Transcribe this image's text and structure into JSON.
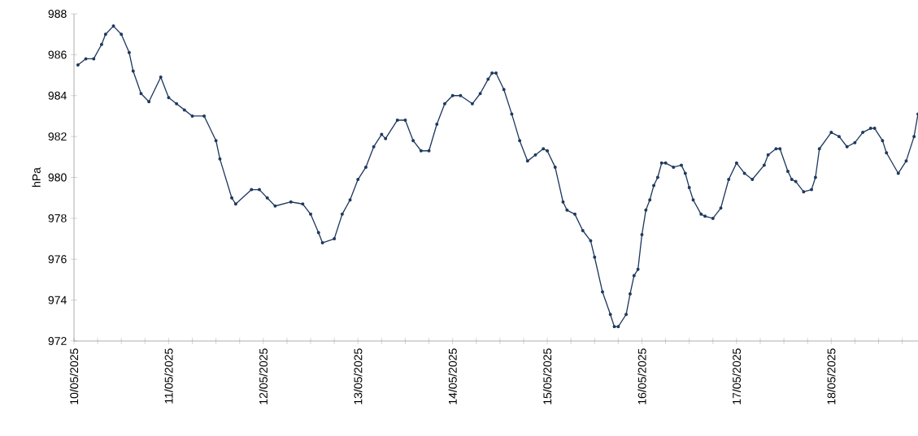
{
  "chart_data": {
    "type": "line",
    "ylabel": "hPa",
    "marker": "circle",
    "line_style": "solid",
    "xlim": [
      "2025-05-10T00:00",
      "2025-05-18T22:00"
    ],
    "ylim": [
      972,
      988
    ],
    "yticks": [
      972,
      974,
      976,
      978,
      980,
      982,
      984,
      986,
      988
    ],
    "xticks": [
      {
        "value": "2025-05-10T00:00",
        "label": "10/05/2025"
      },
      {
        "value": "2025-05-10T06:00",
        "label": null
      },
      {
        "value": "2025-05-10T12:00",
        "label": null
      },
      {
        "value": "2025-05-10T18:00",
        "label": null
      },
      {
        "value": "2025-05-11T00:00",
        "label": "11/05/2025"
      },
      {
        "value": "2025-05-11T06:00",
        "label": null
      },
      {
        "value": "2025-05-11T12:00",
        "label": null
      },
      {
        "value": "2025-05-11T18:00",
        "label": null
      },
      {
        "value": "2025-05-12T00:00",
        "label": "12/05/2025"
      },
      {
        "value": "2025-05-12T06:00",
        "label": null
      },
      {
        "value": "2025-05-12T12:00",
        "label": null
      },
      {
        "value": "2025-05-12T18:00",
        "label": null
      },
      {
        "value": "2025-05-13T00:00",
        "label": "13/05/2025"
      },
      {
        "value": "2025-05-13T06:00",
        "label": null
      },
      {
        "value": "2025-05-13T12:00",
        "label": null
      },
      {
        "value": "2025-05-13T18:00",
        "label": null
      },
      {
        "value": "2025-05-14T00:00",
        "label": "14/05/2025"
      },
      {
        "value": "2025-05-14T06:00",
        "label": null
      },
      {
        "value": "2025-05-14T12:00",
        "label": null
      },
      {
        "value": "2025-05-14T18:00",
        "label": null
      },
      {
        "value": "2025-05-15T00:00",
        "label": "15/05/2025"
      },
      {
        "value": "2025-05-15T06:00",
        "label": null
      },
      {
        "value": "2025-05-15T12:00",
        "label": null
      },
      {
        "value": "2025-05-15T18:00",
        "label": null
      },
      {
        "value": "2025-05-16T00:00",
        "label": "16/05/2025"
      },
      {
        "value": "2025-05-16T06:00",
        "label": null
      },
      {
        "value": "2025-05-16T12:00",
        "label": null
      },
      {
        "value": "2025-05-16T18:00",
        "label": null
      },
      {
        "value": "2025-05-17T00:00",
        "label": "17/05/2025"
      },
      {
        "value": "2025-05-17T06:00",
        "label": null
      },
      {
        "value": "2025-05-17T12:00",
        "label": null
      },
      {
        "value": "2025-05-17T18:00",
        "label": null
      },
      {
        "value": "2025-05-18T00:00",
        "label": "18/05/2025"
      },
      {
        "value": "2025-05-18T06:00",
        "label": null
      },
      {
        "value": "2025-05-18T12:00",
        "label": null
      },
      {
        "value": "2025-05-18T18:00",
        "label": null
      }
    ],
    "series": [
      {
        "color": "#1f3a5f",
        "x": [
          "2025-05-10T01:00",
          "2025-05-10T03:00",
          "2025-05-10T05:00",
          "2025-05-10T07:00",
          "2025-05-10T08:00",
          "2025-05-10T10:00",
          "2025-05-10T12:00",
          "2025-05-10T14:00",
          "2025-05-10T15:00",
          "2025-05-10T17:00",
          "2025-05-10T19:00",
          "2025-05-10T22:00",
          "2025-05-11T00:00",
          "2025-05-11T02:00",
          "2025-05-11T04:00",
          "2025-05-11T06:00",
          "2025-05-11T09:00",
          "2025-05-11T12:00",
          "2025-05-11T13:00",
          "2025-05-11T16:00",
          "2025-05-11T17:00",
          "2025-05-11T21:00",
          "2025-05-11T23:00",
          "2025-05-12T01:00",
          "2025-05-12T03:00",
          "2025-05-12T07:00",
          "2025-05-12T10:00",
          "2025-05-12T12:00",
          "2025-05-12T14:00",
          "2025-05-12T15:00",
          "2025-05-12T18:00",
          "2025-05-12T20:00",
          "2025-05-12T22:00",
          "2025-05-13T00:00",
          "2025-05-13T02:00",
          "2025-05-13T04:00",
          "2025-05-13T06:00",
          "2025-05-13T07:00",
          "2025-05-13T10:00",
          "2025-05-13T12:00",
          "2025-05-13T14:00",
          "2025-05-13T16:00",
          "2025-05-13T18:00",
          "2025-05-13T20:00",
          "2025-05-13T22:00",
          "2025-05-14T00:00",
          "2025-05-14T02:00",
          "2025-05-14T05:00",
          "2025-05-14T07:00",
          "2025-05-14T09:00",
          "2025-05-14T10:00",
          "2025-05-14T11:00",
          "2025-05-14T13:00",
          "2025-05-14T15:00",
          "2025-05-14T17:00",
          "2025-05-14T19:00",
          "2025-05-14T21:00",
          "2025-05-14T23:00",
          "2025-05-15T00:00",
          "2025-05-15T02:00",
          "2025-05-15T04:00",
          "2025-05-15T05:00",
          "2025-05-15T07:00",
          "2025-05-15T09:00",
          "2025-05-15T11:00",
          "2025-05-15T12:00",
          "2025-05-15T14:00",
          "2025-05-15T16:00",
          "2025-05-15T17:00",
          "2025-05-15T18:00",
          "2025-05-15T20:00",
          "2025-05-15T21:00",
          "2025-05-15T22:00",
          "2025-05-15T23:00",
          "2025-05-16T00:00",
          "2025-05-16T01:00",
          "2025-05-16T02:00",
          "2025-05-16T03:00",
          "2025-05-16T04:00",
          "2025-05-16T05:00",
          "2025-05-16T06:00",
          "2025-05-16T08:00",
          "2025-05-16T10:00",
          "2025-05-16T11:00",
          "2025-05-16T12:00",
          "2025-05-16T13:00",
          "2025-05-16T15:00",
          "2025-05-16T16:00",
          "2025-05-16T18:00",
          "2025-05-16T20:00",
          "2025-05-16T22:00",
          "2025-05-17T00:00",
          "2025-05-17T02:00",
          "2025-05-17T04:00",
          "2025-05-17T07:00",
          "2025-05-17T08:00",
          "2025-05-17T10:00",
          "2025-05-17T11:00",
          "2025-05-17T13:00",
          "2025-05-17T14:00",
          "2025-05-17T15:00",
          "2025-05-17T17:00",
          "2025-05-17T19:00",
          "2025-05-17T20:00",
          "2025-05-17T21:00",
          "2025-05-18T00:00",
          "2025-05-18T02:00",
          "2025-05-18T04:00",
          "2025-05-18T06:00",
          "2025-05-18T08:00",
          "2025-05-18T10:00",
          "2025-05-18T11:00",
          "2025-05-18T13:00",
          "2025-05-18T14:00",
          "2025-05-18T17:00",
          "2025-05-18T19:00",
          "2025-05-18T21:00",
          "2025-05-18T22:00"
        ],
        "values": [
          985.5,
          985.8,
          985.8,
          986.5,
          987.0,
          987.4,
          987.0,
          986.1,
          985.2,
          984.1,
          983.7,
          984.9,
          983.9,
          983.6,
          983.3,
          983.0,
          983.0,
          981.8,
          980.9,
          979.0,
          978.7,
          979.4,
          979.4,
          979.0,
          978.6,
          978.8,
          978.7,
          978.2,
          977.3,
          976.8,
          977.0,
          978.2,
          978.9,
          979.9,
          980.5,
          981.5,
          982.1,
          981.9,
          982.8,
          982.8,
          981.8,
          981.3,
          981.3,
          982.6,
          983.6,
          984.0,
          984.0,
          983.6,
          984.1,
          984.8,
          985.1,
          985.1,
          984.3,
          983.1,
          981.8,
          980.8,
          981.1,
          981.4,
          981.3,
          980.5,
          978.8,
          978.4,
          978.2,
          977.4,
          976.9,
          976.1,
          974.4,
          973.3,
          972.7,
          972.7,
          973.3,
          974.3,
          975.2,
          975.5,
          977.2,
          978.4,
          978.9,
          979.6,
          980.0,
          980.7,
          980.7,
          980.5,
          980.6,
          980.2,
          979.5,
          978.9,
          978.2,
          978.1,
          978.0,
          978.5,
          979.9,
          980.7,
          980.2,
          979.9,
          980.6,
          981.1,
          981.4,
          981.4,
          980.3,
          979.9,
          979.8,
          979.3,
          979.4,
          980.0,
          981.4,
          982.2,
          982.0,
          981.5,
          981.7,
          982.2,
          982.4,
          982.4,
          981.8,
          981.2,
          980.2,
          980.8,
          982.0,
          983.1
        ]
      }
    ]
  }
}
